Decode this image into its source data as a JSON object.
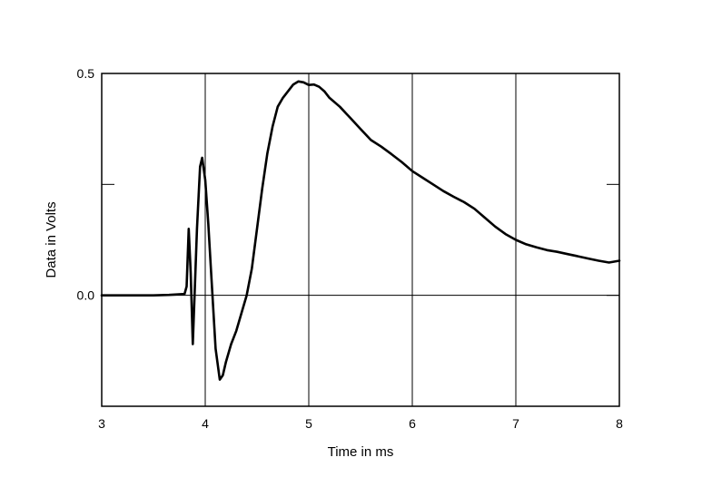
{
  "chart_data": {
    "type": "line",
    "title": "",
    "xlabel": "Time in ms",
    "ylabel": "Data in Volts",
    "xlim": [
      3,
      8
    ],
    "ylim": [
      -0.25,
      0.5
    ],
    "x_ticks": [
      3,
      4,
      5,
      6,
      7,
      8
    ],
    "x_tick_labels": [
      "3",
      "4",
      "5",
      "6",
      "7",
      "8"
    ],
    "y_ticks": [
      0.5,
      0.25,
      0.0,
      -0.25
    ],
    "y_tick_labels": [
      "0.5",
      "",
      "0.0",
      ""
    ],
    "grid": true,
    "colors": {
      "line": "#000000",
      "grid": "#000000",
      "background": "#ffffff"
    },
    "series": [
      {
        "x": [
          3.0,
          3.5,
          3.65,
          3.8,
          3.82,
          3.84,
          3.86,
          3.88,
          3.9,
          3.92,
          3.95,
          3.97,
          4.0,
          4.03,
          4.06,
          4.1,
          4.14,
          4.17,
          4.2,
          4.25,
          4.3,
          4.35,
          4.4,
          4.45,
          4.5,
          4.55,
          4.6,
          4.65,
          4.7,
          4.75,
          4.8,
          4.85,
          4.9,
          4.95,
          5.0,
          5.05,
          5.1,
          5.15,
          5.2,
          5.3,
          5.4,
          5.5,
          5.6,
          5.7,
          5.8,
          5.9,
          6.0,
          6.1,
          6.2,
          6.3,
          6.4,
          6.5,
          6.6,
          6.7,
          6.8,
          6.9,
          7.0,
          7.1,
          7.2,
          7.3,
          7.4,
          7.5,
          7.6,
          7.7,
          7.8,
          7.9,
          8.0
        ],
        "y": [
          0.0,
          0.0,
          0.001,
          0.003,
          0.02,
          0.15,
          0.05,
          -0.11,
          0.02,
          0.15,
          0.29,
          0.31,
          0.26,
          0.16,
          0.04,
          -0.12,
          -0.19,
          -0.18,
          -0.15,
          -0.11,
          -0.08,
          -0.04,
          0.0,
          0.06,
          0.15,
          0.24,
          0.32,
          0.38,
          0.425,
          0.445,
          0.46,
          0.475,
          0.482,
          0.48,
          0.474,
          0.475,
          0.47,
          0.46,
          0.445,
          0.425,
          0.4,
          0.375,
          0.35,
          0.335,
          0.318,
          0.3,
          0.28,
          0.265,
          0.25,
          0.235,
          0.222,
          0.21,
          0.195,
          0.175,
          0.155,
          0.138,
          0.125,
          0.115,
          0.108,
          0.102,
          0.098,
          0.093,
          0.088,
          0.083,
          0.078,
          0.074,
          0.078
        ]
      }
    ]
  }
}
